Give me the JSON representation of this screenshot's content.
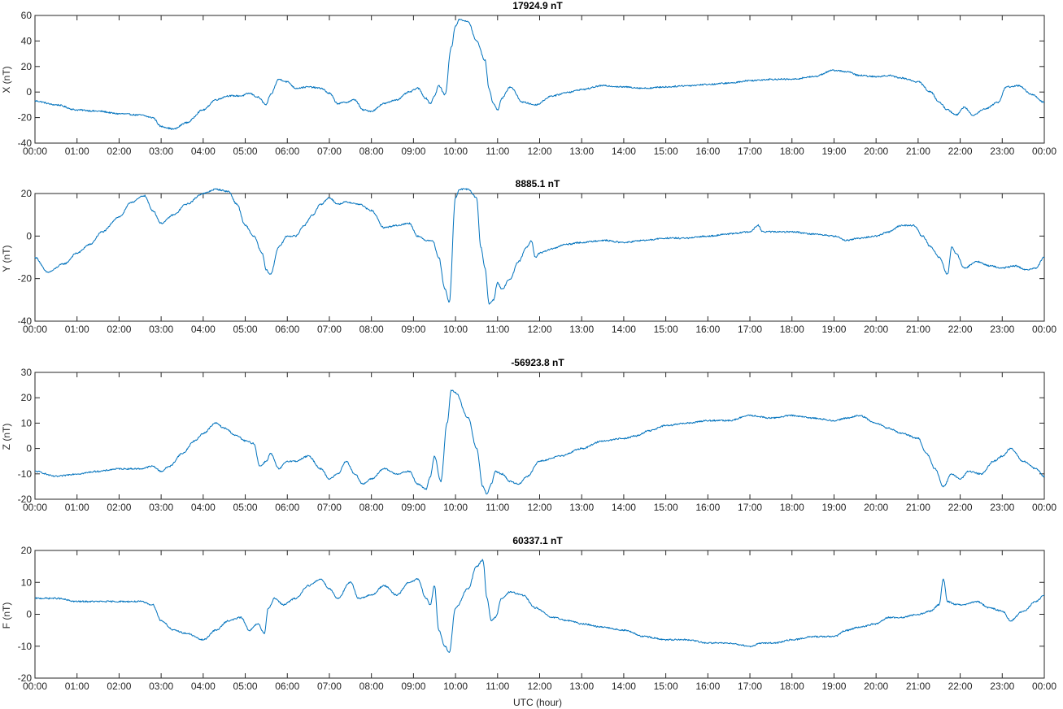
{
  "figure": {
    "xlabel": "UTC (hour)"
  },
  "chart_data": [
    {
      "type": "line",
      "title": "17924.9 nT",
      "ylabel": "X (nT)",
      "xlabel": "",
      "xlim": [
        0,
        24
      ],
      "ylim": [
        -40,
        60
      ],
      "yticks": [
        -40,
        -20,
        0,
        20,
        40,
        60
      ],
      "xticks": [
        0,
        1,
        2,
        3,
        4,
        5,
        6,
        7,
        8,
        9,
        10,
        11,
        12,
        13,
        14,
        15,
        16,
        17,
        18,
        19,
        20,
        21,
        22,
        23,
        24
      ],
      "xticklabels": [
        "00:00",
        "01:00",
        "02:00",
        "03:00",
        "04:00",
        "05:00",
        "06:00",
        "07:00",
        "08:00",
        "09:00",
        "10:00",
        "11:00",
        "12:00",
        "13:00",
        "14:00",
        "15:00",
        "16:00",
        "17:00",
        "18:00",
        "19:00",
        "20:00",
        "21:00",
        "22:00",
        "23:00",
        "00:00"
      ],
      "grid": false,
      "color": "#0072bd",
      "series": [
        {
          "x": [
            0,
            0.5,
            1,
            1.5,
            2,
            2.5,
            2.8,
            3,
            3.3,
            3.6,
            4,
            4.3,
            4.6,
            4.9,
            5.1,
            5.3,
            5.5,
            5.6,
            5.8,
            6,
            6.2,
            6.5,
            6.8,
            7,
            7.2,
            7.4,
            7.6,
            7.8,
            8,
            8.3,
            8.6,
            8.9,
            9.1,
            9.3,
            9.4,
            9.5,
            9.6,
            9.75,
            9.9,
            10.0,
            10.1,
            10.3,
            10.5,
            10.7,
            10.8,
            10.9,
            11,
            11.1,
            11.3,
            11.6,
            11.9,
            12.3,
            12.7,
            13,
            13.5,
            14,
            14.5,
            15,
            15.5,
            16,
            16.5,
            17,
            17.5,
            18,
            18.5,
            19,
            19.3,
            19.6,
            20,
            20.3,
            20.6,
            21,
            21.3,
            21.5,
            21.7,
            21.9,
            22.1,
            22.3,
            22.6,
            22.9,
            23.1,
            23.4,
            23.7,
            24
          ],
          "y": [
            -7,
            -10,
            -14,
            -15,
            -17,
            -18,
            -20,
            -27,
            -29,
            -24,
            -14,
            -6,
            -3,
            -3,
            -1,
            -4,
            -10,
            -2,
            10,
            8,
            3,
            4,
            3,
            -1,
            -9,
            -8,
            -6,
            -14,
            -15,
            -9,
            -6,
            0,
            3,
            -5,
            -9,
            -3,
            5,
            -2,
            35,
            52,
            57,
            55,
            40,
            25,
            2,
            -9,
            -14,
            -5,
            4,
            -8,
            -10,
            -3,
            0,
            2,
            5,
            4,
            3,
            4,
            5,
            6,
            7,
            9,
            10,
            10,
            12,
            17,
            16,
            13,
            12,
            13,
            11,
            8,
            0,
            -8,
            -14,
            -18,
            -12,
            -18,
            -13,
            -8,
            4,
            5,
            -2,
            -8
          ]
        }
      ]
    },
    {
      "type": "line",
      "title": "8885.1 nT",
      "ylabel": "Y (nT)",
      "xlabel": "",
      "xlim": [
        0,
        24
      ],
      "ylim": [
        -40,
        20
      ],
      "yticks": [
        -40,
        -20,
        0,
        20
      ],
      "xticks": [
        0,
        1,
        2,
        3,
        4,
        5,
        6,
        7,
        8,
        9,
        10,
        11,
        12,
        13,
        14,
        15,
        16,
        17,
        18,
        19,
        20,
        21,
        22,
        23,
        24
      ],
      "xticklabels": [
        "00:00",
        "01:00",
        "02:00",
        "03:00",
        "04:00",
        "05:00",
        "06:00",
        "07:00",
        "08:00",
        "09:00",
        "10:00",
        "11:00",
        "12:00",
        "13:00",
        "14:00",
        "15:00",
        "16:00",
        "17:00",
        "18:00",
        "19:00",
        "20:00",
        "21:00",
        "22:00",
        "23:00",
        "00:00"
      ],
      "grid": false,
      "color": "#0072bd",
      "series": [
        {
          "x": [
            0,
            0.3,
            0.7,
            1,
            1.3,
            1.6,
            2,
            2.3,
            2.6,
            2.8,
            3,
            3.3,
            3.6,
            4,
            4.3,
            4.6,
            4.8,
            5,
            5.2,
            5.4,
            5.5,
            5.6,
            5.8,
            6,
            6.2,
            6.4,
            6.6,
            6.8,
            7,
            7.2,
            7.4,
            7.7,
            8,
            8.3,
            8.6,
            8.9,
            9.1,
            9.3,
            9.45,
            9.6,
            9.75,
            9.85,
            10,
            10.1,
            10.3,
            10.5,
            10.6,
            10.7,
            10.8,
            10.9,
            11,
            11.1,
            11.3,
            11.5,
            11.7,
            11.8,
            11.9,
            12,
            12.3,
            12.6,
            13,
            13.5,
            14,
            14.5,
            15,
            15.5,
            16,
            16.5,
            17,
            17.2,
            17.3,
            17.5,
            18,
            18.5,
            19,
            19.3,
            19.6,
            20,
            20.3,
            20.6,
            20.9,
            21.1,
            21.3,
            21.5,
            21.7,
            21.8,
            21.9,
            22.1,
            22.4,
            22.7,
            23,
            23.3,
            23.6,
            23.8,
            24
          ],
          "y": [
            -10,
            -17,
            -13,
            -8,
            -4,
            2,
            9,
            16,
            19,
            12,
            6,
            10,
            15,
            20,
            22,
            21,
            15,
            5,
            0,
            -8,
            -16,
            -18,
            -5,
            0,
            0,
            5,
            10,
            15,
            18,
            15,
            16,
            15,
            12,
            4,
            5,
            6,
            0,
            -2,
            -2,
            -10,
            -25,
            -31,
            18,
            22,
            22,
            18,
            -5,
            -15,
            -32,
            -30,
            -22,
            -25,
            -20,
            -12,
            -5,
            -2,
            -10,
            -8,
            -6,
            -4,
            -3,
            -2,
            -3,
            -2,
            -1,
            -1,
            0,
            1,
            2,
            5,
            2,
            2,
            2,
            1,
            0,
            -2,
            -1,
            0,
            2,
            5,
            5,
            0,
            -5,
            -10,
            -18,
            -5,
            -8,
            -15,
            -12,
            -14,
            -15,
            -14,
            -16,
            -15,
            -10
          ]
        }
      ]
    },
    {
      "type": "line",
      "title": "-56923.8 nT",
      "ylabel": "Z (nT)",
      "xlabel": "",
      "xlim": [
        0,
        24
      ],
      "ylim": [
        -20,
        30
      ],
      "yticks": [
        -20,
        -10,
        0,
        10,
        20,
        30
      ],
      "xticks": [
        0,
        1,
        2,
        3,
        4,
        5,
        6,
        7,
        8,
        9,
        10,
        11,
        12,
        13,
        14,
        15,
        16,
        17,
        18,
        19,
        20,
        21,
        22,
        23,
        24
      ],
      "xticklabels": [
        "00:00",
        "01:00",
        "02:00",
        "03:00",
        "04:00",
        "05:00",
        "06:00",
        "07:00",
        "08:00",
        "09:00",
        "10:00",
        "11:00",
        "12:00",
        "13:00",
        "14:00",
        "15:00",
        "16:00",
        "17:00",
        "18:00",
        "19:00",
        "20:00",
        "21:00",
        "22:00",
        "23:00",
        "00:00"
      ],
      "grid": false,
      "color": "#0072bd",
      "series": [
        {
          "x": [
            0,
            0.5,
            1,
            1.5,
            2,
            2.5,
            2.8,
            3,
            3.2,
            3.5,
            3.8,
            4,
            4.3,
            4.5,
            4.8,
            5,
            5.2,
            5.35,
            5.5,
            5.6,
            5.8,
            6,
            6.2,
            6.5,
            6.8,
            7,
            7.2,
            7.4,
            7.6,
            7.8,
            8,
            8.3,
            8.6,
            8.9,
            9.1,
            9.3,
            9.4,
            9.5,
            9.65,
            9.8,
            9.9,
            10,
            10.3,
            10.5,
            10.65,
            10.75,
            10.85,
            10.95,
            11.1,
            11.3,
            11.5,
            11.7,
            12,
            12.5,
            13,
            13.5,
            14,
            14.3,
            14.6,
            15,
            15.5,
            16,
            16.5,
            17,
            17.5,
            18,
            18.5,
            19,
            19.3,
            19.6,
            20,
            20.3,
            20.6,
            21,
            21.2,
            21.4,
            21.6,
            21.8,
            22,
            22.2,
            22.5,
            22.8,
            23,
            23.2,
            23.5,
            23.8,
            24
          ],
          "y": [
            -9,
            -11,
            -10,
            -9,
            -8,
            -8,
            -7,
            -9,
            -7,
            -2,
            3,
            6,
            10,
            8,
            5,
            3,
            2,
            -7,
            -5,
            -2,
            -8,
            -5,
            -5,
            -3,
            -8,
            -12,
            -10,
            -5,
            -10,
            -14,
            -12,
            -8,
            -10,
            -9,
            -14,
            -16,
            -11,
            -3,
            -13,
            10,
            23,
            22,
            12,
            0,
            -15,
            -18,
            -14,
            -9,
            -10,
            -13,
            -14,
            -11,
            -5,
            -3,
            0,
            3,
            4,
            5,
            7,
            9,
            10,
            11,
            11,
            13,
            12,
            13,
            12,
            11,
            12,
            13,
            10,
            8,
            6,
            4,
            -2,
            -8,
            -15,
            -10,
            -12,
            -9,
            -10,
            -5,
            -3,
            0,
            -5,
            -8,
            -11
          ]
        }
      ]
    },
    {
      "type": "line",
      "title": "60337.1 nT",
      "ylabel": "F (nT)",
      "xlabel": "UTC (hour)",
      "xlim": [
        0,
        24
      ],
      "ylim": [
        -20,
        20
      ],
      "yticks": [
        -20,
        -10,
        0,
        10,
        20
      ],
      "xticks": [
        0,
        1,
        2,
        3,
        4,
        5,
        6,
        7,
        8,
        9,
        10,
        11,
        12,
        13,
        14,
        15,
        16,
        17,
        18,
        19,
        20,
        21,
        22,
        23,
        24
      ],
      "xticklabels": [
        "00:00",
        "01:00",
        "02:00",
        "03:00",
        "04:00",
        "05:00",
        "06:00",
        "07:00",
        "08:00",
        "09:00",
        "10:00",
        "11:00",
        "12:00",
        "13:00",
        "14:00",
        "15:00",
        "16:00",
        "17:00",
        "18:00",
        "19:00",
        "20:00",
        "21:00",
        "22:00",
        "23:00",
        "00:00"
      ],
      "grid": false,
      "color": "#0072bd",
      "series": [
        {
          "x": [
            0,
            0.5,
            1,
            1.5,
            2,
            2.5,
            2.8,
            3,
            3.3,
            3.6,
            4,
            4.3,
            4.6,
            4.9,
            5.1,
            5.3,
            5.45,
            5.55,
            5.7,
            5.9,
            6.2,
            6.5,
            6.8,
            7,
            7.2,
            7.5,
            7.7,
            8,
            8.3,
            8.6,
            8.9,
            9.1,
            9.3,
            9.4,
            9.5,
            9.6,
            9.75,
            9.85,
            10,
            10.3,
            10.5,
            10.65,
            10.75,
            10.85,
            10.95,
            11.1,
            11.3,
            11.6,
            11.9,
            12.3,
            12.7,
            13,
            13.5,
            14,
            14.5,
            15,
            15.5,
            16,
            16.5,
            17,
            17.3,
            17.6,
            18,
            18.5,
            19,
            19.3,
            19.6,
            20,
            20.3,
            20.6,
            21,
            21.3,
            21.5,
            21.6,
            21.7,
            21.9,
            22.1,
            22.4,
            22.7,
            23,
            23.2,
            23.5,
            23.8,
            24
          ],
          "y": [
            5,
            5,
            4,
            4,
            4,
            4,
            3,
            -2,
            -5,
            -6,
            -8,
            -5,
            -2,
            -1,
            -5,
            -3,
            -6,
            2,
            5,
            3,
            5,
            9,
            11,
            8,
            5,
            10,
            5,
            6,
            9,
            6,
            10,
            11,
            5,
            3,
            9,
            -5,
            -10,
            -12,
            2,
            8,
            15,
            17,
            5,
            -2,
            -1,
            5,
            7,
            6,
            2,
            -1,
            -2,
            -3,
            -4,
            -5,
            -7,
            -8,
            -8,
            -9,
            -9,
            -10,
            -9,
            -9,
            -8,
            -7,
            -7,
            -5,
            -4,
            -3,
            -1,
            -1,
            0,
            1,
            3,
            11,
            4,
            3,
            3,
            4,
            2,
            1,
            -2,
            1,
            4,
            6
          ]
        }
      ]
    }
  ]
}
